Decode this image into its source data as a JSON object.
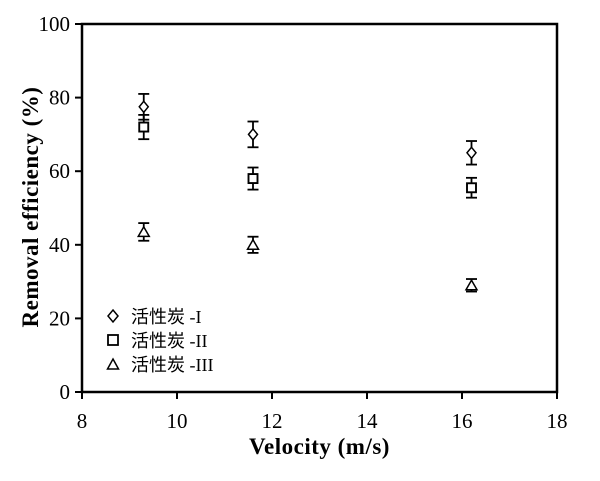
{
  "figure": {
    "background": "#ffffff",
    "foreground": "#000000"
  },
  "chart_data": {
    "type": "scatter",
    "title": "",
    "xlabel": "Velocity (m/s)",
    "ylabel": "Removal efficiency (%)",
    "xlim": [
      8,
      18
    ],
    "ylim": [
      0,
      100
    ],
    "xticks": [
      8,
      10,
      12,
      14,
      16,
      18
    ],
    "yticks": [
      0,
      20,
      40,
      60,
      80,
      100
    ],
    "grid": false,
    "legend_position": "inside-lower-left",
    "error_bars": true,
    "series": [
      {
        "name": "活性炭 -I",
        "marker": "diamond",
        "points": [
          {
            "x": 9.3,
            "y": 77.5,
            "err": 3.5
          },
          {
            "x": 11.6,
            "y": 70.0,
            "err": 3.5
          },
          {
            "x": 16.2,
            "y": 65.0,
            "err": 3.2
          }
        ]
      },
      {
        "name": "活性炭 -II",
        "marker": "square",
        "points": [
          {
            "x": 9.3,
            "y": 72.0,
            "err": 3.3
          },
          {
            "x": 11.6,
            "y": 58.0,
            "err": 3.0
          },
          {
            "x": 16.2,
            "y": 55.5,
            "err": 2.7
          }
        ]
      },
      {
        "name": "活性炭 -III",
        "marker": "triangle",
        "points": [
          {
            "x": 9.3,
            "y": 43.5,
            "err": 2.4
          },
          {
            "x": 11.6,
            "y": 40.0,
            "err": 2.2
          },
          {
            "x": 16.2,
            "y": 29.0,
            "err": 1.7
          }
        ]
      }
    ],
    "colors": {
      "foreground": "#000000",
      "background": "#ffffff"
    }
  }
}
